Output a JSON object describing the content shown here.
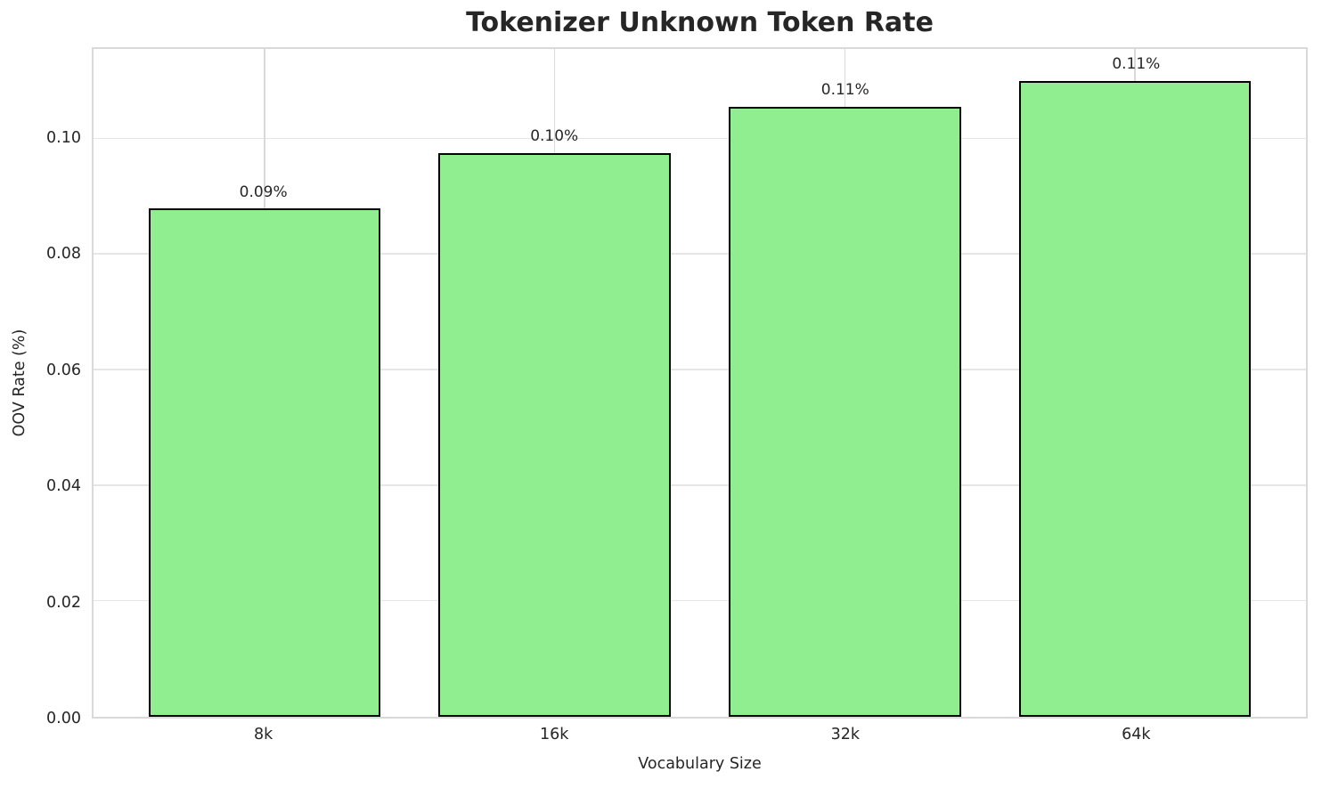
{
  "chart_data": {
    "type": "bar",
    "title": "Tokenizer Unknown Token Rate",
    "xlabel": "Vocabulary Size",
    "ylabel": "OOV Rate (%)",
    "categories": [
      "8k",
      "16k",
      "32k",
      "64k"
    ],
    "values": [
      0.088,
      0.0976,
      0.1056,
      0.1101
    ],
    "bar_labels": [
      "0.09%",
      "0.10%",
      "0.11%",
      "0.11%"
    ],
    "yticks": [
      0.0,
      0.02,
      0.04,
      0.06,
      0.08,
      0.1
    ],
    "ytick_labels": [
      "0.00",
      "0.02",
      "0.04",
      "0.06",
      "0.08",
      "0.10"
    ],
    "ylim": [
      0,
      0.1156
    ],
    "bar_width_data": 0.8,
    "grid": true,
    "legend_position": "none",
    "colors": {
      "bar_fill": "#90EE90",
      "bar_edge": "#000000",
      "grid_h": "#e6e6e6",
      "grid_v": "#d9d9d9",
      "spine": "#d9d9d9",
      "text": "#262626",
      "background": "#ffffff"
    }
  }
}
